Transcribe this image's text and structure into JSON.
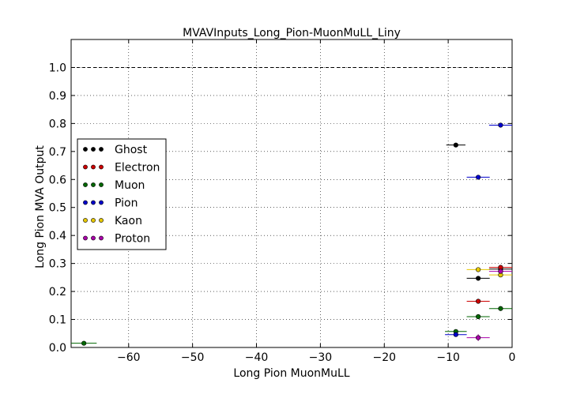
{
  "chart_data": {
    "type": "scatter",
    "title": "MVAVInputs_Long_Pion-MuonMuLL_Liny",
    "xlabel": "Long Pion MuonMuLL",
    "ylabel": "Long Pion MVA Output",
    "xlim": [
      -69,
      0
    ],
    "ylim": [
      0.0,
      1.1
    ],
    "xticks": [
      -60,
      -50,
      -40,
      -30,
      -20,
      -10,
      0
    ],
    "xtick_labels": [
      "−60",
      "−50",
      "−40",
      "−30",
      "−20",
      "−10",
      "0"
    ],
    "yticks": [
      0.0,
      0.1,
      0.2,
      0.3,
      0.4,
      0.5,
      0.6,
      0.7,
      0.8,
      0.9,
      1.0
    ],
    "ytick_labels": [
      "0.0",
      "0.1",
      "0.2",
      "0.3",
      "0.4",
      "0.5",
      "0.6",
      "0.7",
      "0.8",
      "0.9",
      "1.0"
    ],
    "grid": true,
    "reference_line": {
      "y": 1.0,
      "style": "dashed"
    },
    "legend_position": "center-left",
    "series": [
      {
        "name": "Ghost",
        "color": "#000000",
        "points": [
          {
            "x": -8.8,
            "y": 0.723,
            "xerr": 1.5,
            "yerr": 0.005
          },
          {
            "x": -5.3,
            "y": 0.247,
            "xerr": 1.8,
            "yerr": 0.005
          },
          {
            "x": -1.8,
            "y": 0.28,
            "xerr": 1.8,
            "yerr": 0.005
          }
        ]
      },
      {
        "name": "Electron",
        "color": "#cc0000",
        "points": [
          {
            "x": -5.3,
            "y": 0.165,
            "xerr": 1.8,
            "yerr": 0.005
          },
          {
            "x": -1.8,
            "y": 0.286,
            "xerr": 1.8,
            "yerr": 0.005
          }
        ]
      },
      {
        "name": "Muon",
        "color": "#006600",
        "points": [
          {
            "x": -67.0,
            "y": 0.015,
            "xerr": 2.0,
            "yerr": 0.003
          },
          {
            "x": -8.8,
            "y": 0.057,
            "xerr": 1.7,
            "yerr": 0.004
          },
          {
            "x": -5.3,
            "y": 0.11,
            "xerr": 1.8,
            "yerr": 0.005
          },
          {
            "x": -1.8,
            "y": 0.139,
            "xerr": 1.8,
            "yerr": 0.005
          }
        ]
      },
      {
        "name": "Pion",
        "color": "#0000cc",
        "points": [
          {
            "x": -8.8,
            "y": 0.046,
            "xerr": 1.7,
            "yerr": 0.004
          },
          {
            "x": -5.3,
            "y": 0.608,
            "xerr": 1.8,
            "yerr": 0.005
          },
          {
            "x": -1.8,
            "y": 0.794,
            "xerr": 1.8,
            "yerr": 0.005
          }
        ]
      },
      {
        "name": "Kaon",
        "color": "#e6c800",
        "points": [
          {
            "x": -5.3,
            "y": 0.278,
            "xerr": 1.8,
            "yerr": 0.005
          },
          {
            "x": -1.8,
            "y": 0.259,
            "xerr": 1.8,
            "yerr": 0.005
          }
        ]
      },
      {
        "name": "Proton",
        "color": "#aa00aa",
        "points": [
          {
            "x": -5.3,
            "y": 0.035,
            "xerr": 1.8,
            "yerr": 0.012
          },
          {
            "x": -1.8,
            "y": 0.272,
            "xerr": 1.8,
            "yerr": 0.005
          }
        ]
      }
    ]
  }
}
